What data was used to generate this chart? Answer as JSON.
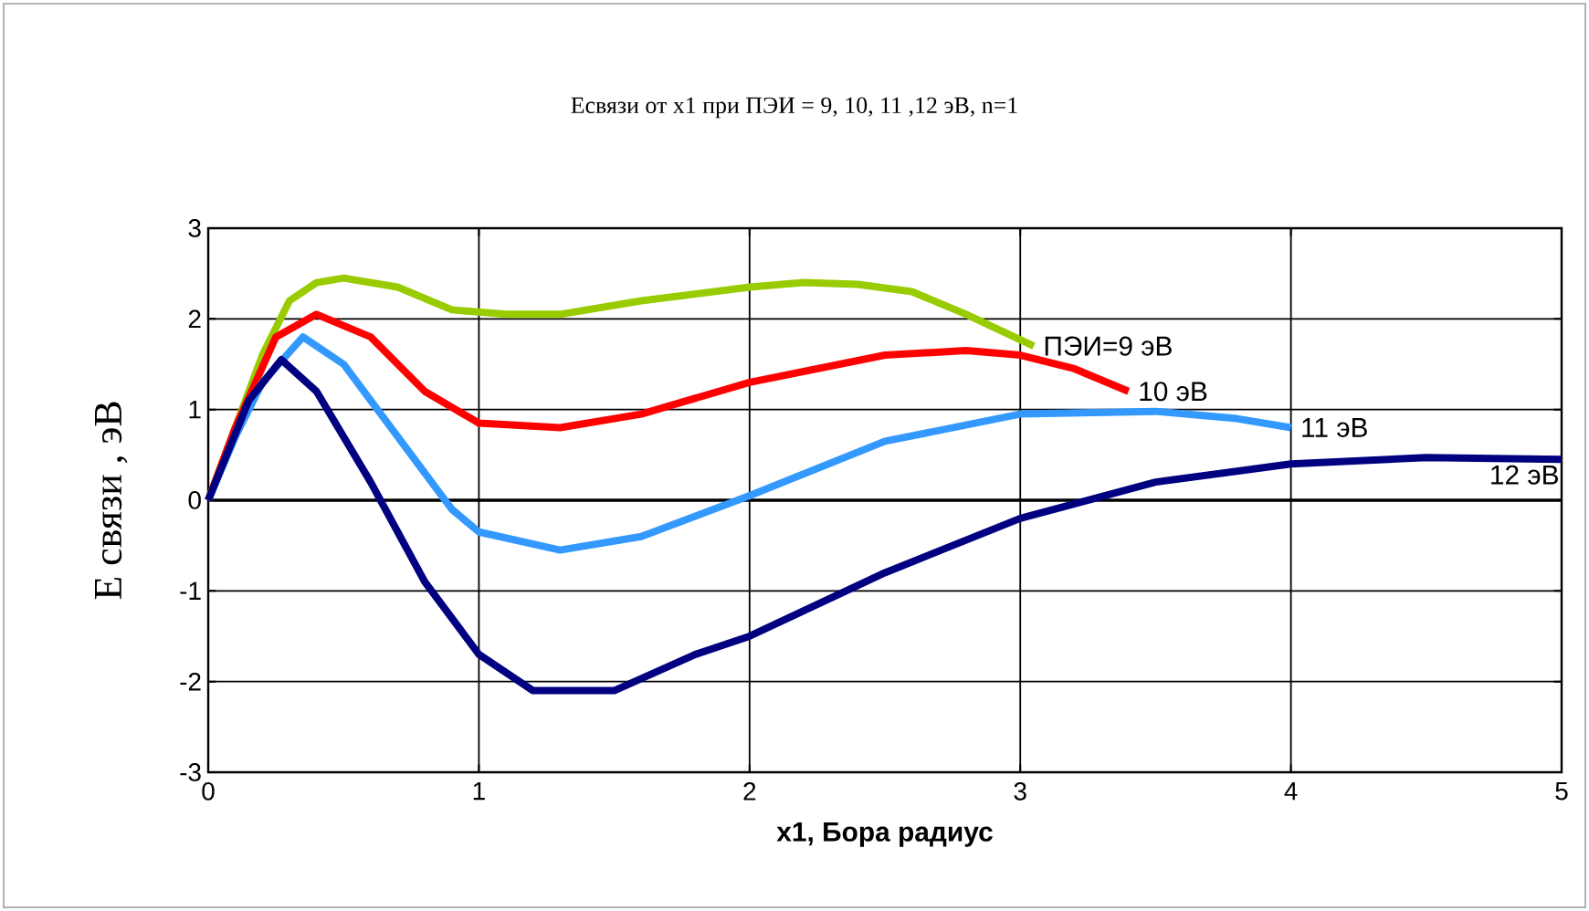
{
  "chart_data": {
    "type": "line",
    "title": "Eсвязи от x1 при ПЭИ = 9, 10, 11 ,12 эВ, n=1",
    "xlabel": "x1, Бора радиус",
    "ylabel": "E связи , эВ",
    "xlim": [
      0,
      5
    ],
    "ylim": [
      -3,
      3
    ],
    "xticks": [
      0,
      1,
      2,
      3,
      4,
      5
    ],
    "yticks": [
      -3,
      -2,
      -1,
      0,
      1,
      2,
      3
    ],
    "grid": true,
    "legend": false,
    "marker": "none",
    "line_style": "solid",
    "series": [
      {
        "name": "ПЭИ=9 эВ",
        "color": "#99cc00",
        "x": [
          0,
          0.1,
          0.2,
          0.3,
          0.4,
          0.5,
          0.7,
          0.9,
          1.1,
          1.3,
          1.6,
          2.0,
          2.2,
          2.4,
          2.6,
          2.8,
          3.05
        ],
        "values": [
          0,
          0.8,
          1.6,
          2.2,
          2.4,
          2.45,
          2.35,
          2.1,
          2.05,
          2.05,
          2.2,
          2.35,
          2.4,
          2.38,
          2.3,
          2.05,
          1.7
        ]
      },
      {
        "name": "10  эВ",
        "color": "#ff0000",
        "x": [
          0,
          0.1,
          0.25,
          0.4,
          0.6,
          0.8,
          1.0,
          1.3,
          1.6,
          2.0,
          2.5,
          2.8,
          3.0,
          3.2,
          3.4
        ],
        "values": [
          0,
          0.8,
          1.8,
          2.05,
          1.8,
          1.2,
          0.85,
          0.8,
          0.95,
          1.3,
          1.6,
          1.65,
          1.6,
          1.45,
          1.2
        ]
      },
      {
        "name": "11 эВ",
        "color": "#3399ff",
        "x": [
          0,
          0.1,
          0.2,
          0.35,
          0.5,
          0.7,
          0.9,
          1.0,
          1.3,
          1.6,
          2.0,
          2.5,
          3.0,
          3.5,
          3.8,
          4.0
        ],
        "values": [
          0,
          0.7,
          1.3,
          1.8,
          1.5,
          0.7,
          -0.1,
          -0.35,
          -0.55,
          -0.4,
          0.05,
          0.65,
          0.95,
          0.98,
          0.9,
          0.8
        ]
      },
      {
        "name": "12 эВ",
        "color": "#000080",
        "x": [
          0,
          0.15,
          0.27,
          0.4,
          0.6,
          0.8,
          1.0,
          1.2,
          1.5,
          1.8,
          2.0,
          2.5,
          3.0,
          3.5,
          4.0,
          4.5,
          5.0
        ],
        "values": [
          0,
          1.1,
          1.55,
          1.2,
          0.2,
          -0.9,
          -1.7,
          -2.1,
          -2.1,
          -1.7,
          -1.5,
          -0.8,
          -0.2,
          0.2,
          0.4,
          0.47,
          0.45
        ]
      }
    ]
  }
}
